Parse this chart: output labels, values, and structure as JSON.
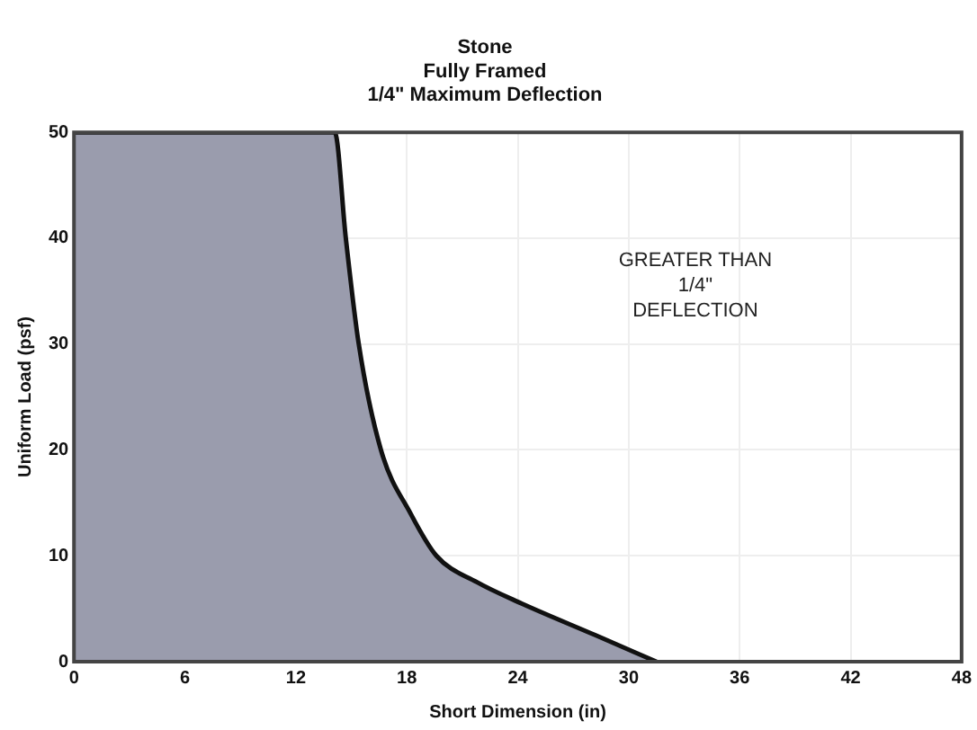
{
  "chart_data": {
    "type": "area",
    "title": "Stone\nFully Framed\n1/4\" Maximum Deflection",
    "xlabel": "Short Dimension (in)",
    "ylabel": "Uniform Load (psf)",
    "x": [
      0,
      14.1,
      14.7,
      15.4,
      16.6,
      18.2,
      19.6,
      21.8,
      24.2,
      28.2,
      31.5
    ],
    "series": [
      {
        "color": "#9a9cad",
        "values": [
          50,
          50,
          40,
          30,
          20,
          14,
          10,
          7.5,
          5.5,
          2.5,
          0
        ]
      }
    ],
    "xlim": [
      0,
      48
    ],
    "xticks": [
      0,
      6,
      12,
      18,
      24,
      30,
      36,
      42,
      48
    ],
    "ylim": [
      0,
      50
    ],
    "yticks": [
      0,
      10,
      20,
      30,
      40,
      50
    ],
    "grid": true,
    "annotations": [
      "GREATER THAN\n1/4\"\nDEFLECTION"
    ]
  }
}
